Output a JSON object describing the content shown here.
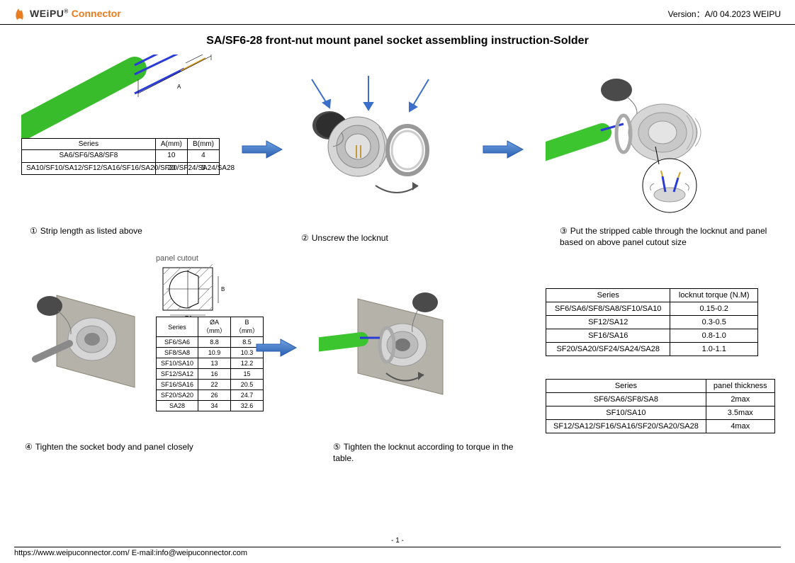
{
  "header": {
    "brand_main": "WEiPU",
    "brand_sub": "Connector",
    "version_label": "Version：",
    "version_value": "A/0 04.2023 WEIPU"
  },
  "title": "SA/SF6-28 front-nut mount panel socket assembling instruction-Solder",
  "step1": {
    "label": "①",
    "text": "Strip length as listed above",
    "dim_A": "A",
    "dim_B": "B",
    "table": {
      "columns": [
        "Series",
        "A(mm)",
        "B(mm)"
      ],
      "rows": [
        [
          "SA6/SF6/SA8/SF8",
          "10",
          "4"
        ],
        [
          "SA10/SF10/SA12/SF12/SA16/SF16/SA20/SF20/SF24/SA24/SA28",
          "20",
          "5"
        ]
      ]
    }
  },
  "step2": {
    "label": "②",
    "text": "Unscrew the locknut"
  },
  "step3": {
    "label": "③",
    "text": "Put the stripped cable through the locknut and panel based on above panel cutout size"
  },
  "step4": {
    "label": "④",
    "text": "Tighten the socket body and panel closely",
    "panel_cutout_label": "panel cutout",
    "dim_A": "ØA",
    "dim_B": "B",
    "table": {
      "columns": [
        "Series",
        "ØA（mm）",
        "B（mm）"
      ],
      "rows": [
        [
          "SF6/SA6",
          "8.8",
          "8.5"
        ],
        [
          "SF8/SA8",
          "10.9",
          "10.3"
        ],
        [
          "SF10/SA10",
          "13",
          "12.2"
        ],
        [
          "SF12/SA12",
          "16",
          "15"
        ],
        [
          "SF16/SA16",
          "22",
          "20.5"
        ],
        [
          "SF20/SA20",
          "26",
          "24.7"
        ],
        [
          "SA28",
          "34",
          "32.6"
        ]
      ]
    }
  },
  "step5": {
    "label": "⑤",
    "text": "Tighten the locknut according to torque in the table."
  },
  "torque_table": {
    "columns": [
      "Series",
      "locknut torque (N.M)"
    ],
    "rows": [
      [
        "SF6/SA6/SF8/SA8/SF10/SA10",
        "0.15-0.2"
      ],
      [
        "SF12/SA12",
        "0.3-0.5"
      ],
      [
        "SF16/SA16",
        "0.8-1.0"
      ],
      [
        "SF20/SA20/SF24/SA24/SA28",
        "1.0-1.1"
      ]
    ]
  },
  "thickness_table": {
    "columns": [
      "Series",
      "panel thickness"
    ],
    "rows": [
      [
        "SF6/SA6/SF8/SA8",
        "2max"
      ],
      [
        "SF10/SA10",
        "3.5max"
      ],
      [
        "SF12/SA12/SF16/SA16/SF20/SA20/SA28",
        "4max"
      ]
    ]
  },
  "footer": {
    "url": "https://www.weipuconnector.com/ E-mail:info@weipuconnector.com",
    "page": "- 1 -"
  },
  "colors": {
    "cable": "#3cc52f",
    "wire_sleeve": "#2a3bd6",
    "wire_core": "#d8a020",
    "metal_light": "#d6d6d6",
    "metal_dark": "#9a9a9a",
    "cap": "#4a4a4a",
    "panel": "#b5b2aa",
    "arrow": "#3b6fc9",
    "accent_orange": "#e87c1e"
  }
}
